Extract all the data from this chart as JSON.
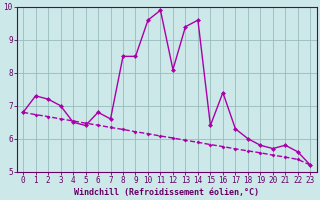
{
  "x": [
    0,
    1,
    2,
    3,
    4,
    5,
    6,
    7,
    8,
    9,
    10,
    11,
    12,
    13,
    14,
    15,
    16,
    17,
    18,
    19,
    20,
    21,
    22,
    23
  ],
  "y_line": [
    6.8,
    7.3,
    7.2,
    7.0,
    6.5,
    6.4,
    6.8,
    6.6,
    8.5,
    8.5,
    9.6,
    9.9,
    8.1,
    9.4,
    9.6,
    6.4,
    7.4,
    6.3,
    6.0,
    5.8,
    5.7,
    5.8,
    5.6,
    5.2
  ],
  "y_trend": [
    6.8,
    6.73,
    6.67,
    6.6,
    6.54,
    6.47,
    6.41,
    6.34,
    6.28,
    6.21,
    6.15,
    6.08,
    6.02,
    5.95,
    5.89,
    5.82,
    5.76,
    5.69,
    5.63,
    5.57,
    5.5,
    5.44,
    5.37,
    5.2
  ],
  "bg_color": "#cce8e8",
  "line_color": "#aa00aa",
  "grid_color": "#99bbbb",
  "axis_color": "#660066",
  "spine_color": "#660066",
  "xlabel": "Windchill (Refroidissement éolien,°C)",
  "xlim": [
    -0.5,
    23.5
  ],
  "ylim": [
    5,
    10
  ],
  "yticks": [
    5,
    6,
    7,
    8,
    9,
    10
  ],
  "xticks": [
    0,
    1,
    2,
    3,
    4,
    5,
    6,
    7,
    8,
    9,
    10,
    11,
    12,
    13,
    14,
    15,
    16,
    17,
    18,
    19,
    20,
    21,
    22,
    23
  ],
  "xticklabels": [
    "0",
    "1",
    "2",
    "3",
    "4",
    "5",
    "6",
    "7",
    "8",
    "9",
    "10",
    "11",
    "12",
    "13",
    "14",
    "15",
    "16",
    "17",
    "18",
    "19",
    "20",
    "21",
    "22",
    "23"
  ],
  "tick_fontsize": 5.5,
  "xlabel_fontsize": 6.0,
  "marker_size": 2.5,
  "linewidth": 1.0
}
